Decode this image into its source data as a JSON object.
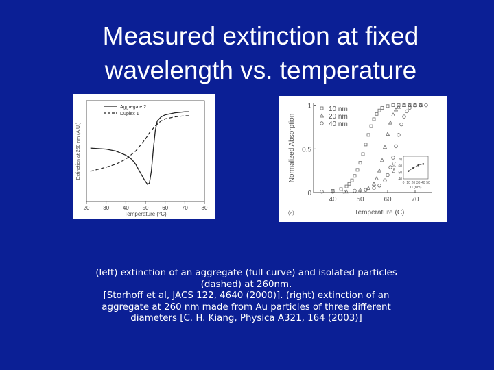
{
  "slide": {
    "title_lines": [
      "Measured extinction at fixed",
      "wavelength vs. temperature"
    ],
    "caption_lines": [
      "(left) extinction of  an aggregate (full curve) and isolated particles",
      "(dashed) at 260nm.",
      "[Storhoff et al, JACS 122, 4640 (2000)].  (right) extinction of an",
      "aggregate at 260 nm made from Au  particles of three different",
      "diameters [C. H. Kiang, Physica A321, 164 (2003)]"
    ],
    "background_color": "#0b1f95"
  },
  "chart_data": [
    {
      "type": "line",
      "xlabel": "Temperature (°C)",
      "ylabel": "Extinction at 260 nm (A.U.)",
      "x_ticks": [
        "20",
        "30",
        "40",
        "50",
        "60",
        "70",
        "80"
      ],
      "xlim": [
        20,
        80
      ],
      "ylim": [
        0,
        1
      ],
      "legend_position": "top-right",
      "series": [
        {
          "name": "Aggregate 2",
          "style": "solid",
          "x": [
            22,
            30,
            35,
            40,
            43,
            45,
            47,
            49,
            51,
            52,
            53,
            54,
            55,
            56,
            58,
            60,
            65,
            70,
            72
          ],
          "y": [
            0.53,
            0.52,
            0.5,
            0.46,
            0.42,
            0.37,
            0.3,
            0.23,
            0.17,
            0.18,
            0.3,
            0.52,
            0.7,
            0.8,
            0.84,
            0.86,
            0.88,
            0.89,
            0.89
          ]
        },
        {
          "name": "Duplex 1",
          "style": "dashed",
          "x": [
            22,
            30,
            35,
            40,
            45,
            50,
            52,
            55,
            58,
            60,
            65,
            70,
            72
          ],
          "y": [
            0.3,
            0.34,
            0.37,
            0.42,
            0.5,
            0.62,
            0.68,
            0.75,
            0.8,
            0.82,
            0.84,
            0.85,
            0.85
          ]
        }
      ]
    },
    {
      "type": "scatter",
      "xlabel": "Temperature (C)",
      "ylabel": "Normalized Absorption",
      "x_ticks": [
        "40",
        "50",
        "60",
        "70"
      ],
      "y_ticks": [
        "0",
        "0.5",
        "1"
      ],
      "xlim": [
        33,
        76
      ],
      "ylim": [
        0,
        1.02
      ],
      "panel_label": "(a)",
      "legend_position": "top-left",
      "series": [
        {
          "name": "10 nm",
          "marker": "square",
          "x": [
            40,
            43,
            45,
            46,
            47,
            48,
            49,
            50,
            51,
            52,
            53,
            54,
            55,
            56,
            57,
            58,
            60,
            62,
            64,
            66,
            68,
            70,
            72
          ],
          "y": [
            0.02,
            0.04,
            0.07,
            0.1,
            0.14,
            0.19,
            0.26,
            0.34,
            0.44,
            0.55,
            0.66,
            0.76,
            0.84,
            0.9,
            0.94,
            0.97,
            0.99,
            1.0,
            1.0,
            1.0,
            1.0,
            1.0,
            1.0
          ]
        },
        {
          "name": "20 nm",
          "marker": "triangle",
          "x": [
            45,
            50,
            53,
            55,
            56,
            57,
            58,
            59,
            60,
            61,
            62,
            63,
            64,
            66,
            68,
            70,
            72
          ],
          "y": [
            0.01,
            0.03,
            0.05,
            0.1,
            0.16,
            0.25,
            0.37,
            0.52,
            0.67,
            0.8,
            0.89,
            0.95,
            0.98,
            1.0,
            1.0,
            1.0,
            1.0
          ]
        },
        {
          "name": "40 nm",
          "marker": "circle",
          "x": [
            36,
            40,
            44,
            48,
            52,
            55,
            57,
            59,
            60,
            61,
            62,
            63,
            64,
            65,
            66,
            67,
            68,
            70,
            72,
            74
          ],
          "y": [
            0.01,
            0.01,
            0.01,
            0.02,
            0.03,
            0.05,
            0.08,
            0.14,
            0.2,
            0.29,
            0.4,
            0.53,
            0.66,
            0.78,
            0.87,
            0.93,
            0.97,
            1.0,
            1.0,
            1.0
          ]
        }
      ],
      "inset": {
        "xlabel": "D (nm)",
        "ylabel": "Tm (C)",
        "x_ticks": [
          "0",
          "10",
          "20",
          "30",
          "40",
          "50"
        ],
        "y_ticks": [
          "40",
          "50",
          "60",
          "70"
        ],
        "xlim": [
          0,
          50
        ],
        "ylim": [
          40,
          75
        ],
        "x": [
          10,
          20,
          30,
          40
        ],
        "y": [
          52,
          57,
          61,
          63
        ]
      }
    }
  ]
}
